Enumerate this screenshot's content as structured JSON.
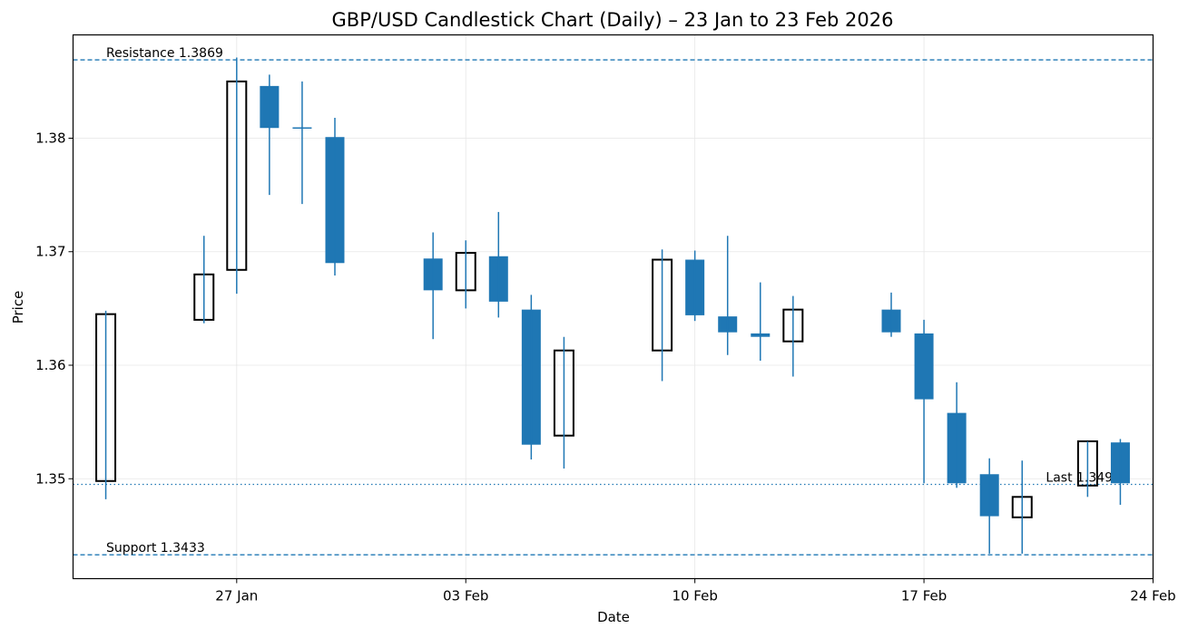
{
  "chart_data": {
    "type": "candlestick",
    "title": "GBP/USD Candlestick Chart (Daily) – 23 Jan to 23 Feb 2026",
    "xlabel": "Date",
    "ylabel": "Price",
    "xlim": [
      "2026-01-22",
      "2026-02-24"
    ],
    "ylim": [
      1.3412,
      1.3891
    ],
    "grid": true,
    "x_ticks": [
      {
        "date": "2026-01-27",
        "label": "27 Jan"
      },
      {
        "date": "2026-02-03",
        "label": "03 Feb"
      },
      {
        "date": "2026-02-10",
        "label": "10 Feb"
      },
      {
        "date": "2026-02-17",
        "label": "17 Feb"
      },
      {
        "date": "2026-02-24",
        "label": "24 Feb"
      }
    ],
    "y_ticks": [
      {
        "value": 1.35,
        "label": "1.35"
      },
      {
        "value": 1.36,
        "label": "1.36"
      },
      {
        "value": 1.37,
        "label": "1.37"
      },
      {
        "value": 1.38,
        "label": "1.38"
      }
    ],
    "colors": {
      "down_fill": "#1f77b4",
      "up_edge": "#000000",
      "wick": "#1f77b4",
      "ref_line": "#1f77b4"
    },
    "candles": [
      {
        "date": "2026-01-23",
        "open": 1.3498,
        "high": 1.3648,
        "low": 1.3482,
        "close": 1.3645
      },
      {
        "date": "2026-01-26",
        "open": 1.364,
        "high": 1.3714,
        "low": 1.3637,
        "close": 1.368
      },
      {
        "date": "2026-01-27",
        "open": 1.3684,
        "high": 1.3871,
        "low": 1.3663,
        "close": 1.385
      },
      {
        "date": "2026-01-28",
        "open": 1.3846,
        "high": 1.3856,
        "low": 1.375,
        "close": 1.3809
      },
      {
        "date": "2026-01-29",
        "open": 1.3809,
        "high": 1.385,
        "low": 1.3742,
        "close": 1.3809
      },
      {
        "date": "2026-01-30",
        "open": 1.3801,
        "high": 1.3818,
        "low": 1.3679,
        "close": 1.369
      },
      {
        "date": "2026-02-02",
        "open": 1.3694,
        "high": 1.3717,
        "low": 1.3623,
        "close": 1.3666
      },
      {
        "date": "2026-02-03",
        "open": 1.3666,
        "high": 1.371,
        "low": 1.365,
        "close": 1.3699
      },
      {
        "date": "2026-02-04",
        "open": 1.3696,
        "high": 1.3735,
        "low": 1.3642,
        "close": 1.3656
      },
      {
        "date": "2026-02-05",
        "open": 1.3649,
        "high": 1.3662,
        "low": 1.3517,
        "close": 1.353
      },
      {
        "date": "2026-02-06",
        "open": 1.3538,
        "high": 1.3625,
        "low": 1.3509,
        "close": 1.3613
      },
      {
        "date": "2026-02-09",
        "open": 1.3613,
        "high": 1.3702,
        "low": 1.3586,
        "close": 1.3693
      },
      {
        "date": "2026-02-10",
        "open": 1.3693,
        "high": 1.3701,
        "low": 1.3639,
        "close": 1.3644
      },
      {
        "date": "2026-02-11",
        "open": 1.3643,
        "high": 1.3714,
        "low": 1.3609,
        "close": 1.3629
      },
      {
        "date": "2026-02-12",
        "open": 1.3628,
        "high": 1.3673,
        "low": 1.3604,
        "close": 1.3625
      },
      {
        "date": "2026-02-13",
        "open": 1.3621,
        "high": 1.3661,
        "low": 1.359,
        "close": 1.3649
      },
      {
        "date": "2026-02-16",
        "open": 1.3649,
        "high": 1.3664,
        "low": 1.3625,
        "close": 1.3629
      },
      {
        "date": "2026-02-17",
        "open": 1.3628,
        "high": 1.364,
        "low": 1.3496,
        "close": 1.357
      },
      {
        "date": "2026-02-18",
        "open": 1.3558,
        "high": 1.3585,
        "low": 1.3492,
        "close": 1.3496
      },
      {
        "date": "2026-02-19",
        "open": 1.3504,
        "high": 1.3518,
        "low": 1.3434,
        "close": 1.3467
      },
      {
        "date": "2026-02-20",
        "open": 1.3466,
        "high": 1.3516,
        "low": 1.3434,
        "close": 1.3484
      },
      {
        "date": "2026-02-22",
        "open": 1.3494,
        "high": 1.3533,
        "low": 1.3484,
        "close": 1.3533
      },
      {
        "date": "2026-02-23",
        "open": 1.3532,
        "high": 1.3535,
        "low": 1.3477,
        "close": 1.3496
      }
    ],
    "reference_lines": [
      {
        "label": "Resistance 1.3869",
        "value": 1.3869,
        "style": "dashed",
        "label_position": "left"
      },
      {
        "label": "Support 1.3433",
        "value": 1.3433,
        "style": "dashed",
        "label_position": "left"
      },
      {
        "label": "Last 1.3495",
        "value": 1.3495,
        "style": "dotted",
        "label_position": "right"
      }
    ]
  }
}
